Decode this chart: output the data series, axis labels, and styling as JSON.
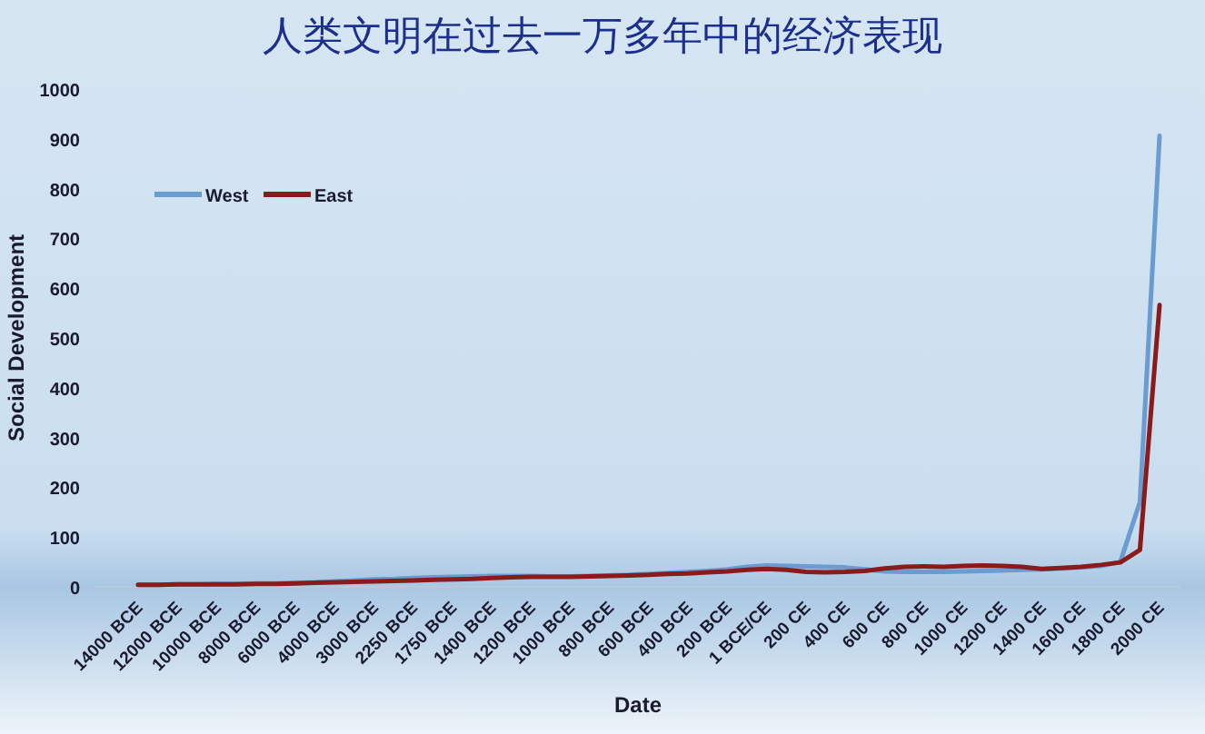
{
  "chart_data": {
    "type": "line",
    "title": "人类文明在过去一万多年中的经济表现",
    "xlabel": "Date",
    "ylabel": "Social Development",
    "categories": [
      "14000 BCE",
      null,
      "12000 BCE",
      null,
      "10000 BCE",
      null,
      "8000 BCE",
      null,
      "6000 BCE",
      null,
      "4000 BCE",
      null,
      "3000 BCE",
      null,
      "2250 BCE",
      null,
      "1750 BCE",
      null,
      "1400 BCE",
      null,
      "1200 BCE",
      null,
      "1000 BCE",
      null,
      "800 BCE",
      null,
      "600 BCE",
      null,
      "400 BCE",
      null,
      "200 BCE",
      null,
      "1 BCE/CE",
      null,
      "200 CE",
      null,
      "400 CE",
      null,
      "600 CE",
      null,
      "800 CE",
      null,
      "1000 CE",
      null,
      "1200 CE",
      null,
      "1400 CE",
      null,
      "1600 CE",
      null,
      "1800 CE",
      null,
      "2000 CE"
    ],
    "series": [
      {
        "name": "West",
        "color": "#6a9bd1",
        "values": [
          4,
          4,
          5,
          5,
          6,
          6,
          7,
          7,
          8,
          9,
          11,
          13,
          15,
          16,
          18,
          19,
          20,
          21,
          22,
          22,
          22,
          21,
          21,
          22,
          23,
          24,
          26,
          28,
          30,
          32,
          35,
          40,
          43,
          42,
          41,
          40,
          39,
          35,
          31,
          30,
          30,
          30,
          31,
          32,
          33,
          34,
          35,
          37,
          39,
          42,
          50,
          170,
          906
        ]
      },
      {
        "name": "East",
        "color": "#8b1a1a",
        "values": [
          4,
          4,
          5,
          5,
          5,
          5,
          6,
          6,
          7,
          8,
          9,
          10,
          11,
          12,
          13,
          14,
          15,
          16,
          18,
          19,
          20,
          20,
          20,
          21,
          22,
          23,
          24,
          26,
          27,
          29,
          31,
          34,
          36,
          34,
          30,
          29,
          30,
          32,
          37,
          40,
          41,
          40,
          42,
          43,
          42,
          40,
          36,
          38,
          40,
          44,
          49,
          74,
          566
        ]
      }
    ],
    "ylim": [
      0,
      1000
    ],
    "yticks": [
      0,
      100,
      200,
      300,
      400,
      500,
      600,
      700,
      800,
      900,
      1000
    ],
    "legend": "top left",
    "grid": false
  }
}
